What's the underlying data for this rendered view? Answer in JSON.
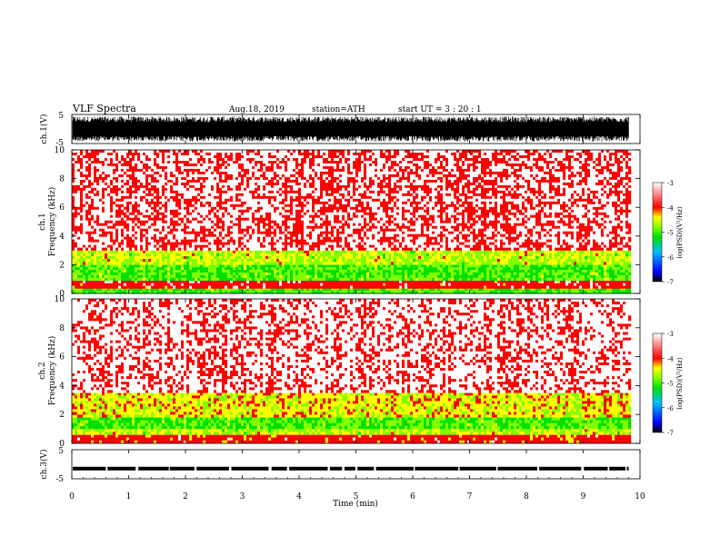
{
  "header": {
    "title": "VLF  Spectra",
    "date": "Aug.18, 2019",
    "station": "station=ATH",
    "start": "start  UT  =    3  : 20 : 1"
  },
  "chart_data": [
    {
      "type": "line",
      "panel": "ch1-waveform",
      "ylabel": "ch.1(V)",
      "ylim": [
        -5,
        5
      ],
      "yticks": [
        "5",
        "-5"
      ],
      "xlim": [
        0,
        10
      ],
      "fill_to": 9.8,
      "amplitude_range": [
        -4.3,
        4.3
      ],
      "color": "#000000"
    },
    {
      "type": "heatmap",
      "panel": "ch1-spectrogram",
      "ylabel": "ch.1\nFrequency  (kHz)",
      "ylim": [
        0,
        10
      ],
      "yticks": [
        "0",
        "2",
        "4",
        "6",
        "8",
        "10"
      ],
      "xlim": [
        0,
        10
      ],
      "data_xmax": 9.8,
      "bands_khz_logpsd": [
        {
          "from": 0,
          "to": 0.35,
          "log_psd": -5.0
        },
        {
          "from": 0.35,
          "to": 0.9,
          "log_psd": -3.8
        },
        {
          "from": 0.9,
          "to": 1.1,
          "log_psd": -4.9
        },
        {
          "from": 1.1,
          "to": 2.0,
          "log_psd": -5.0
        },
        {
          "from": 2.0,
          "to": 3.0,
          "log_psd": -4.6
        },
        {
          "from": 3.0,
          "to": 10,
          "log_psd": -3.5
        }
      ],
      "colorbar": {
        "label": "log(PSD)(V²/Hz)",
        "ticks": [
          "-3",
          "-4",
          "-5",
          "-6",
          "-7"
        ],
        "range": [
          -7,
          -3
        ]
      }
    },
    {
      "type": "heatmap",
      "panel": "ch2-spectrogram",
      "ylabel": "ch.2\nFrequency  (kHz)",
      "ylim": [
        0,
        10
      ],
      "yticks": [
        "0",
        "2",
        "4",
        "6",
        "8",
        "10"
      ],
      "xlim": [
        0,
        10
      ],
      "data_xmax": 9.8,
      "bands_khz_logpsd": [
        {
          "from": 0,
          "to": 0.6,
          "log_psd": -3.9
        },
        {
          "from": 0.6,
          "to": 1.0,
          "log_psd": -4.6
        },
        {
          "from": 1.0,
          "to": 1.8,
          "log_psd": -5.0
        },
        {
          "from": 1.8,
          "to": 3.5,
          "log_psd": -4.4
        },
        {
          "from": 3.5,
          "to": 10,
          "log_psd": -3.4
        }
      ],
      "colorbar": {
        "label": "log(PSD)(V²/Hz)",
        "ticks": [
          "-3",
          "-4",
          "-5",
          "-6",
          "-7"
        ],
        "range": [
          -7,
          -3
        ]
      }
    },
    {
      "type": "line",
      "panel": "ch3-waveform",
      "ylabel": "ch.3(V)",
      "ylim": [
        -5,
        5
      ],
      "yticks": [
        "5",
        "-5"
      ],
      "xlim": [
        0,
        10
      ],
      "level": -1.5,
      "color": "#000000"
    }
  ],
  "x_axis": {
    "label": "Time  (min)",
    "ticks": [
      "0",
      "1",
      "2",
      "3",
      "4",
      "5",
      "6",
      "7",
      "8",
      "9",
      "10"
    ]
  },
  "colors": {
    "scale": [
      "#000000",
      "#0000ff",
      "#00c0ff",
      "#00e000",
      "#80ff00",
      "#ffff00",
      "#ff0000",
      "#ffffff"
    ]
  }
}
